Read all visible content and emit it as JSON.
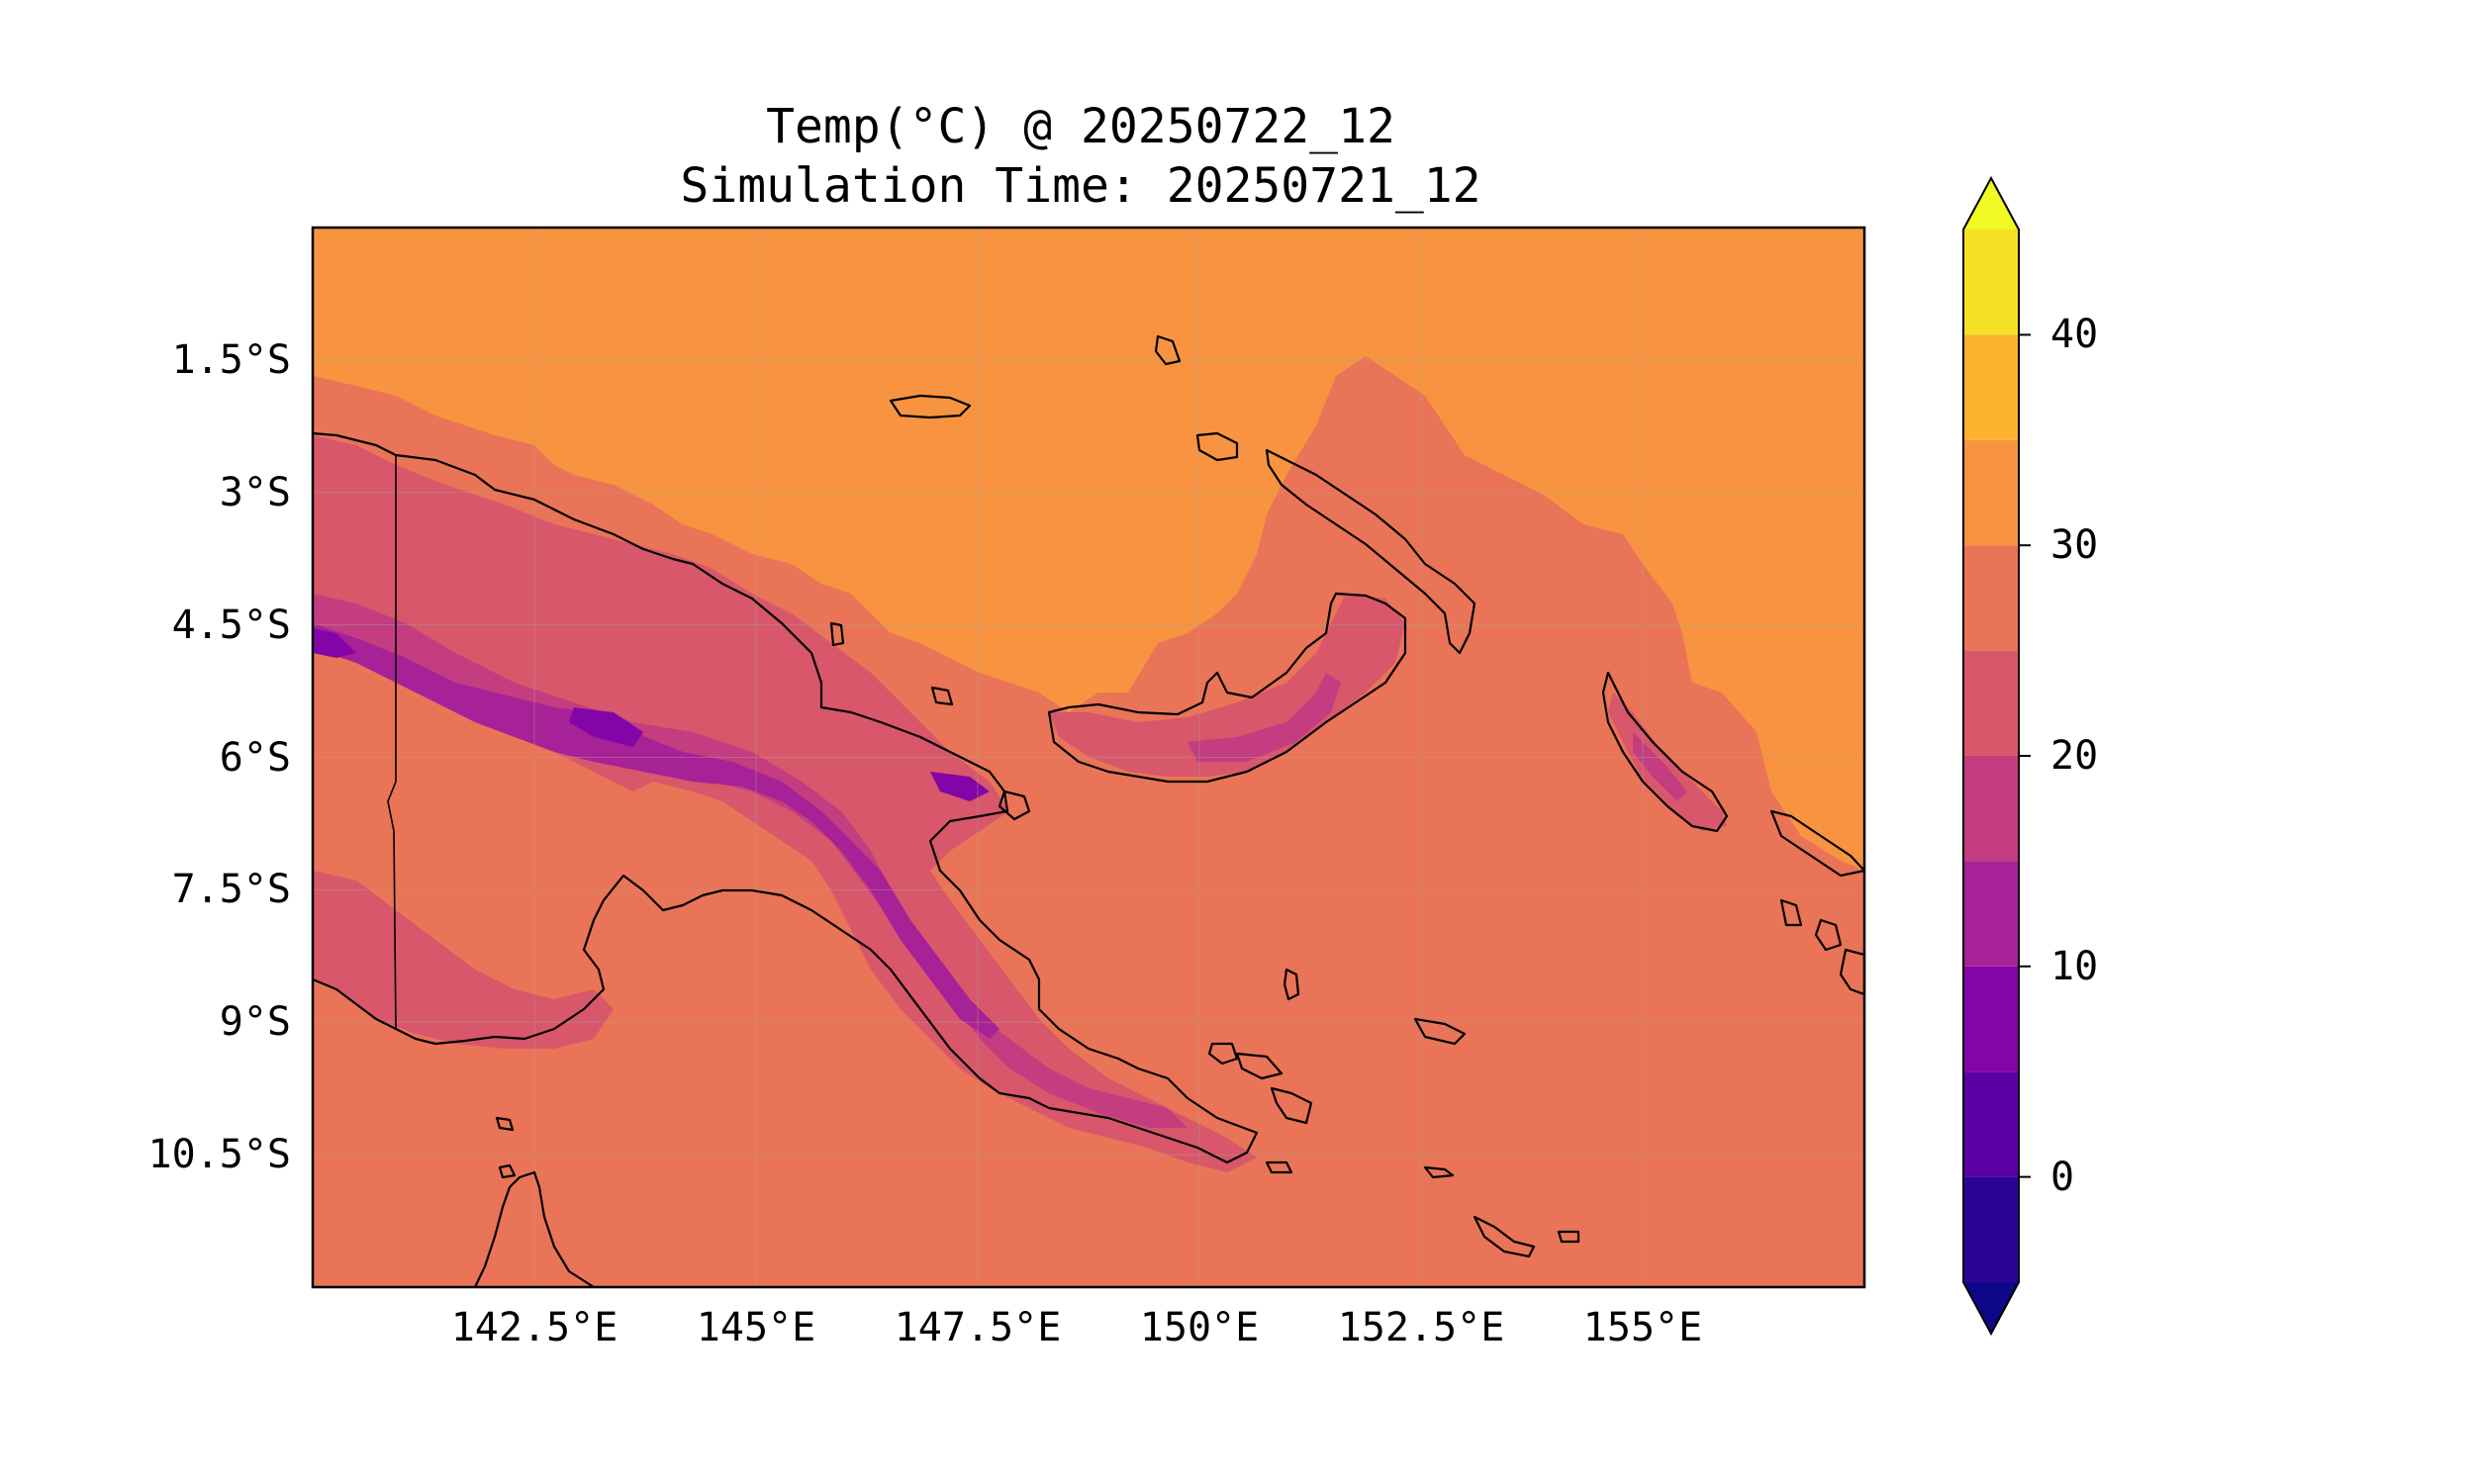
{
  "title": {
    "line1": "Temp(°C) @ 20250722_12",
    "line2": "Simulation Time: 20250721_12"
  },
  "map": {
    "extent": {
      "lon_min": 140.0,
      "lon_max": 157.5,
      "lat_min": -12.0,
      "lat_max": -0.0
    },
    "lat_ticks": [
      {
        "value": -1.5,
        "label": "1.5°S"
      },
      {
        "value": -3.0,
        "label": "3°S"
      },
      {
        "value": -4.5,
        "label": "4.5°S"
      },
      {
        "value": -6.0,
        "label": "6°S"
      },
      {
        "value": -7.5,
        "label": "7.5°S"
      },
      {
        "value": -9.0,
        "label": "9°S"
      },
      {
        "value": -10.5,
        "label": "10.5°S"
      }
    ],
    "lon_ticks": [
      {
        "value": 142.5,
        "label": "142.5°E"
      },
      {
        "value": 145.0,
        "label": "145°E"
      },
      {
        "value": 147.5,
        "label": "147.5°E"
      },
      {
        "value": 150.0,
        "label": "150°E"
      },
      {
        "value": 152.5,
        "label": "152.5°E"
      },
      {
        "value": 155.0,
        "label": "155°E"
      }
    ],
    "gridlines": true
  },
  "colorbar": {
    "colormap": "plasma",
    "extend": "both",
    "levels": [
      -5,
      0,
      5,
      10,
      15,
      20,
      25,
      30,
      35,
      40,
      45
    ],
    "band_colors": [
      "#2a0593",
      "#5a01a5",
      "#8305a7",
      "#a72197",
      "#c33d80",
      "#d8576b",
      "#ea7457",
      "#f89441",
      "#fdb32f",
      "#f5e026"
    ],
    "under_color": "#0d0887",
    "over_color": "#f0f921",
    "tick_labels": [
      {
        "value": 0,
        "label": "0"
      },
      {
        "value": 10,
        "label": "10"
      },
      {
        "value": 20,
        "label": "20"
      },
      {
        "value": 30,
        "label": "30"
      },
      {
        "value": 40,
        "label": "40"
      }
    ]
  }
}
